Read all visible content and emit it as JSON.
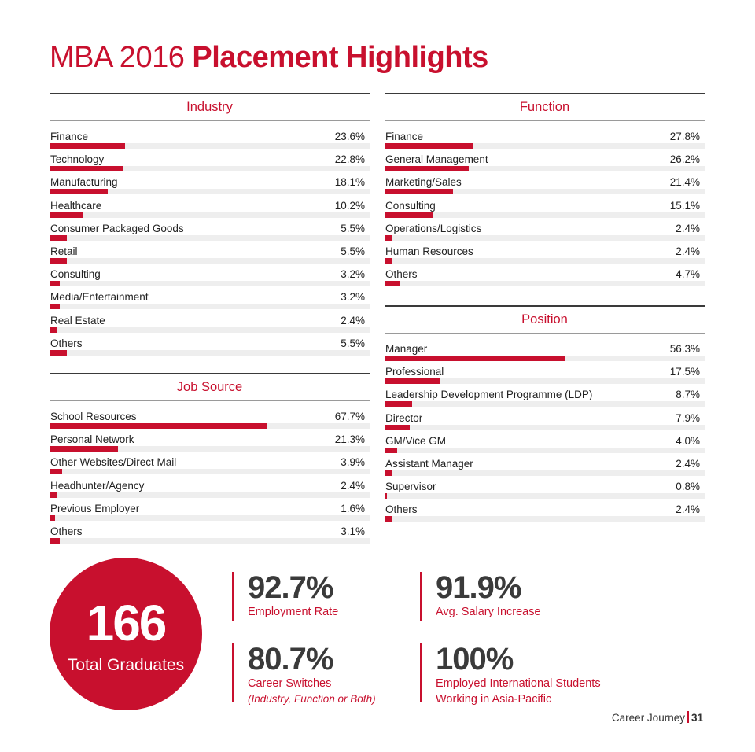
{
  "title": {
    "light": "MBA 2016",
    "bold": "Placement Highlights"
  },
  "chart_data": [
    {
      "type": "bar",
      "title": "Industry",
      "categories": [
        "Finance",
        "Technology",
        "Manufacturing",
        "Healthcare",
        "Consumer Packaged Goods",
        "Retail",
        "Consulting",
        "Media/Entertainment",
        "Real Estate",
        "Others"
      ],
      "values": [
        23.6,
        22.8,
        18.1,
        10.2,
        5.5,
        5.5,
        3.2,
        3.2,
        2.4,
        5.5
      ],
      "value_labels": [
        "23.6%",
        "22.8%",
        "18.1%",
        "10.2%",
        "5.5%",
        "5.5%",
        "3.2%",
        "3.2%",
        "2.4%",
        "5.5%"
      ],
      "xlim": [
        0,
        100
      ]
    },
    {
      "type": "bar",
      "title": "Function",
      "categories": [
        "Finance",
        "General Management",
        "Marketing/Sales",
        "Consulting",
        "Operations/Logistics",
        "Human Resources",
        "Others"
      ],
      "values": [
        27.8,
        26.2,
        21.4,
        15.1,
        2.4,
        2.4,
        4.7
      ],
      "value_labels": [
        "27.8%",
        "26.2%",
        "21.4%",
        "15.1%",
        "2.4%",
        "2.4%",
        "4.7%"
      ],
      "xlim": [
        0,
        100
      ]
    },
    {
      "type": "bar",
      "title": "Job Source",
      "categories": [
        "School Resources",
        "Personal Network",
        "Other Websites/Direct Mail",
        "Headhunter/Agency",
        "Previous Employer",
        "Others"
      ],
      "values": [
        67.7,
        21.3,
        3.9,
        2.4,
        1.6,
        3.1
      ],
      "value_labels": [
        "67.7%",
        "21.3%",
        "3.9%",
        "2.4%",
        "1.6%",
        "3.1%"
      ],
      "xlim": [
        0,
        100
      ]
    },
    {
      "type": "bar",
      "title": "Position",
      "categories": [
        "Manager",
        "Professional",
        "Leadership Development Programme (LDP)",
        "Director",
        "GM/Vice GM",
        "Assistant Manager",
        "Supervisor",
        "Others"
      ],
      "values": [
        56.3,
        17.5,
        8.7,
        7.9,
        4.0,
        2.4,
        0.8,
        2.4
      ],
      "value_labels": [
        "56.3%",
        "17.5%",
        "8.7%",
        "7.9%",
        "4.0%",
        "2.4%",
        "0.8%",
        "2.4%"
      ],
      "xlim": [
        0,
        100
      ]
    }
  ],
  "graduates": {
    "number": "166",
    "label": "Total Graduates"
  },
  "stats": {
    "employment": {
      "value": "92.7%",
      "label": "Employment Rate"
    },
    "salary": {
      "value": "91.9%",
      "label": "Avg. Salary Increase"
    },
    "switches": {
      "value": "80.7%",
      "label": "Career Switches",
      "note": "(Industry, Function or Both)"
    },
    "international": {
      "value": "100%",
      "label": "Employed International Students",
      "label2": "Working in Asia-Pacific"
    }
  },
  "footer": {
    "text": "Career Journey",
    "page": "31"
  },
  "colors": {
    "accent": "#c8102e",
    "track": "#eeeeee",
    "text": "#222222"
  }
}
